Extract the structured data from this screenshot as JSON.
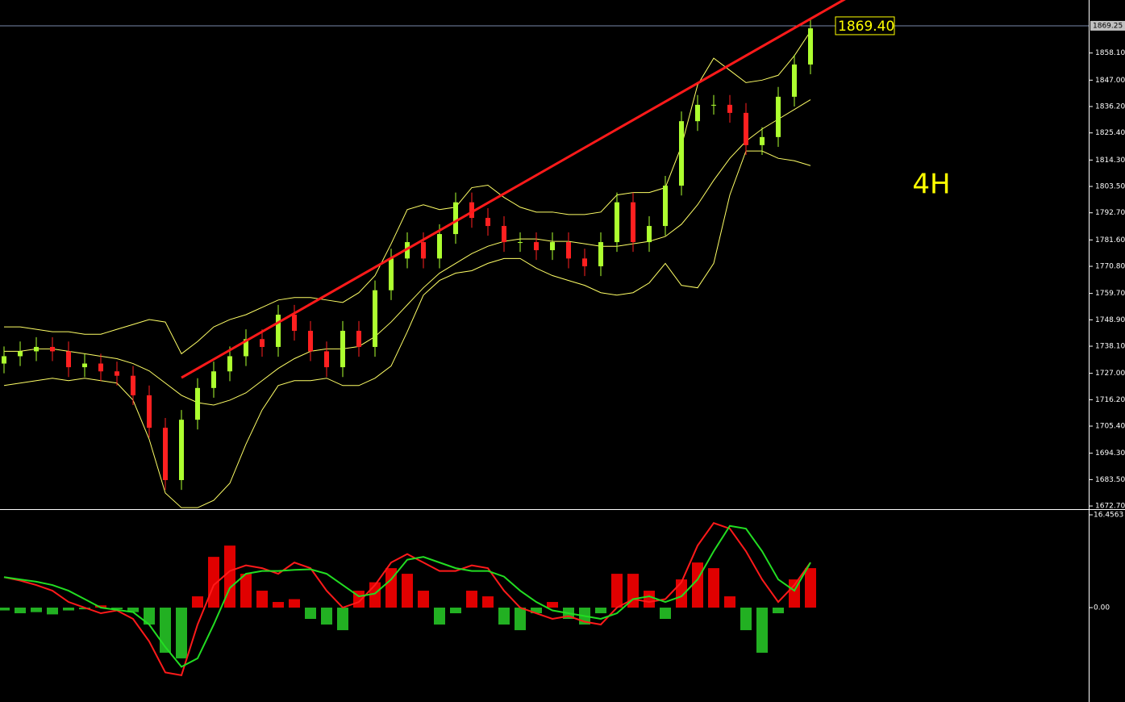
{
  "chart_data": {
    "type": "candlestick",
    "timeframe_label": "4H",
    "price_tag": "1869.40",
    "bid": {
      "value": 1869.25,
      "label": "1869.25"
    },
    "up_color": "#adff2f",
    "down_color": "#ff2020",
    "band_color": "#ffff66",
    "ylim": [
      1671.4,
      1879.8
    ],
    "yticks": [
      {
        "value": 1672.7,
        "label": "1672.70"
      },
      {
        "value": 1683.5,
        "label": "1683.50"
      },
      {
        "value": 1694.3,
        "label": "1694.30"
      },
      {
        "value": 1705.4,
        "label": "1705.40"
      },
      {
        "value": 1716.2,
        "label": "1716.20"
      },
      {
        "value": 1727,
        "label": "1727.00"
      },
      {
        "value": 1738.1,
        "label": "1738.10"
      },
      {
        "value": 1748.9,
        "label": "1748.90"
      },
      {
        "value": 1759.7,
        "label": "1759.70"
      },
      {
        "value": 1770.8,
        "label": "1770.80"
      },
      {
        "value": 1781.6,
        "label": "1781.60"
      },
      {
        "value": 1792.7,
        "label": "1792.70"
      },
      {
        "value": 1803.5,
        "label": "1803.50"
      },
      {
        "value": 1814.3,
        "label": "1814.30"
      },
      {
        "value": 1825.4,
        "label": "1825.40"
      },
      {
        "value": 1836.2,
        "label": "1836.20"
      },
      {
        "value": 1847,
        "label": "1847.00"
      },
      {
        "value": 1858.1,
        "label": "1858.10"
      }
    ],
    "open": [
      1731,
      1734,
      1736,
      1737.8,
      1736,
      1729.5,
      1731,
      1727.8,
      1726,
      1718,
      1704.7,
      1683.3,
      1708,
      1721,
      1727.8,
      1734,
      1741,
      1737.8,
      1751,
      1744.4,
      1736,
      1729.5,
      1744.4,
      1737.8,
      1761,
      1774,
      1780.7,
      1774,
      1784,
      1797,
      1790.6,
      1787.3,
      1780.7,
      1780.7,
      1777.4,
      1780.7,
      1774,
      1770.8,
      1780.7,
      1797,
      1780.7,
      1787.3,
      1803.8,
      1830.2,
      1836.9,
      1836.9,
      1833.6,
      1820.4,
      1823.7,
      1840.2,
      1853.4
    ],
    "high": [
      1738,
      1740,
      1741.8,
      1741.8,
      1740,
      1735,
      1735,
      1731.8,
      1730,
      1722,
      1708.7,
      1712,
      1725,
      1731.8,
      1738,
      1745,
      1745,
      1755,
      1755,
      1748.4,
      1740,
      1748.4,
      1748.4,
      1765,
      1778,
      1784.7,
      1784.7,
      1788,
      1801,
      1801,
      1794.6,
      1791.3,
      1784.7,
      1784.7,
      1784.7,
      1784.7,
      1778,
      1784.7,
      1801,
      1801,
      1791.3,
      1807.8,
      1834.2,
      1840.9,
      1840.9,
      1840.9,
      1837.6,
      1827.7,
      1844.2,
      1857.4,
      1872.2
    ],
    "low": [
      1727,
      1730,
      1732,
      1732,
      1725.5,
      1725.5,
      1723.8,
      1722,
      1714,
      1700.7,
      1679.3,
      1679.3,
      1704,
      1717,
      1723.8,
      1730,
      1733.8,
      1733.8,
      1740.4,
      1732,
      1725.5,
      1725.5,
      1733.8,
      1733.8,
      1757,
      1770,
      1770,
      1770,
      1780,
      1786.6,
      1783.3,
      1776.7,
      1776.7,
      1773.4,
      1773.4,
      1770,
      1766.8,
      1766.8,
      1776.7,
      1776.7,
      1776.7,
      1783.3,
      1799.8,
      1826.2,
      1832.9,
      1829.6,
      1816.4,
      1816.4,
      1819.7,
      1836.2,
      1849.4
    ],
    "close": [
      1734,
      1736,
      1737.8,
      1736,
      1729.5,
      1731,
      1727.8,
      1726,
      1718,
      1704.7,
      1683.3,
      1708,
      1721,
      1727.8,
      1734,
      1741,
      1737.8,
      1751,
      1744.4,
      1736,
      1729.5,
      1744.4,
      1737.8,
      1761,
      1774,
      1780.7,
      1774,
      1784,
      1797,
      1790.6,
      1787.3,
      1780.7,
      1780.7,
      1777.4,
      1780.7,
      1774,
      1770.8,
      1780.7,
      1797,
      1780.7,
      1787.3,
      1803.8,
      1830.2,
      1836.9,
      1836.9,
      1833.6,
      1820.4,
      1823.7,
      1840.2,
      1853.4,
      1868.2
    ],
    "bands": [
      {
        "values": [
          1746,
          1746,
          1745,
          1744,
          1744,
          1743,
          1743,
          1745,
          1747,
          1749,
          1748,
          1735,
          1740,
          1746,
          1749,
          1751,
          1754,
          1757,
          1758,
          1758,
          1757,
          1756,
          1760,
          1767,
          1780,
          1794,
          1796,
          1794,
          1795,
          1803,
          1804,
          1799,
          1795,
          1793,
          1793,
          1792,
          1792,
          1793,
          1800,
          1801,
          1801,
          1803,
          1820,
          1845,
          1856,
          1851,
          1846,
          1847,
          1849,
          1857,
          1867
        ]
      },
      {
        "values": [
          1736,
          1736,
          1737,
          1737,
          1736,
          1735,
          1734,
          1733,
          1731,
          1728,
          1723,
          1718,
          1715,
          1714,
          1716,
          1719,
          1724,
          1729,
          1733,
          1736,
          1737,
          1737,
          1738,
          1742,
          1748,
          1755,
          1762,
          1768,
          1772,
          1776,
          1779,
          1781,
          1782,
          1782,
          1781,
          1781,
          1780,
          1779,
          1779,
          1780,
          1781,
          1783,
          1788,
          1796,
          1806,
          1815,
          1822,
          1827,
          1831,
          1835,
          1839
        ]
      },
      {
        "values": [
          1722,
          1723,
          1724,
          1725,
          1724,
          1725,
          1724,
          1723,
          1716,
          1700,
          1678,
          1672,
          1672,
          1675,
          1682,
          1698,
          1712,
          1722,
          1724,
          1724,
          1725,
          1722,
          1722,
          1725,
          1730,
          1744,
          1759,
          1765,
          1768,
          1769,
          1772,
          1774,
          1774,
          1770,
          1767,
          1765,
          1763,
          1760,
          1759,
          1760,
          1764,
          1772,
          1763,
          1762,
          1772,
          1800,
          1818,
          1818,
          1815,
          1814,
          1812
        ]
      }
    ],
    "trendline": {
      "start_index": 11,
      "start_price": 1725.2,
      "end_index": 50,
      "end_price": 1872.1
    },
    "macd": {
      "ylim": [
        -16.74,
        17.32
      ],
      "yticks": [
        16.4563,
        {
          "value": 0,
          "label": "0.00"
        }
      ],
      "hist_pos_color": "#e00000",
      "hist_neg_color": "#22b022",
      "histogram": [
        -0.5,
        -1,
        -0.8,
        -1.2,
        -0.5,
        -0.3,
        0.4,
        -0.3,
        -0.8,
        -3,
        -8,
        -9,
        2,
        9,
        11,
        6,
        3,
        1,
        1.5,
        -2,
        -3,
        -4,
        3,
        4.5,
        7,
        6,
        3,
        -3,
        -1,
        3,
        2,
        -3,
        -4,
        -1,
        1,
        -2,
        -3,
        -1,
        6,
        6,
        3,
        -2,
        5,
        8,
        7,
        2,
        -4,
        -8,
        -1,
        5,
        7
      ],
      "series": [
        {
          "color": "#ff1a1a",
          "values": [
            5.4,
            4.8,
            4,
            3,
            1,
            0,
            -1,
            -0.5,
            -2,
            -6,
            -11.5,
            -12,
            -3,
            4,
            6.5,
            7.5,
            7,
            6,
            8,
            7,
            3,
            0,
            1,
            4,
            8,
            9.5,
            8,
            6.5,
            6.5,
            7.5,
            7,
            3,
            0,
            -1,
            -2,
            -1.5,
            -2.5,
            -3,
            0,
            1.5,
            1,
            1.5,
            4.5,
            11,
            15,
            14,
            10,
            5,
            1,
            4,
            8
          ]
        },
        {
          "color": "#22dd22",
          "values": [
            5.4,
            5,
            4.6,
            4,
            3,
            1.5,
            0,
            -0.4,
            -0.8,
            -3,
            -7,
            -10.5,
            -9,
            -3,
            3.5,
            6,
            6.5,
            6.5,
            6.7,
            6.8,
            6,
            4,
            2,
            2.5,
            5,
            8.5,
            9,
            8,
            7,
            6.5,
            6.5,
            5.5,
            3,
            1,
            -0.5,
            -1,
            -1.5,
            -2,
            -1,
            1.5,
            2,
            1,
            2,
            5,
            10,
            14.5,
            14,
            10,
            5,
            3,
            8
          ]
        }
      ]
    }
  }
}
